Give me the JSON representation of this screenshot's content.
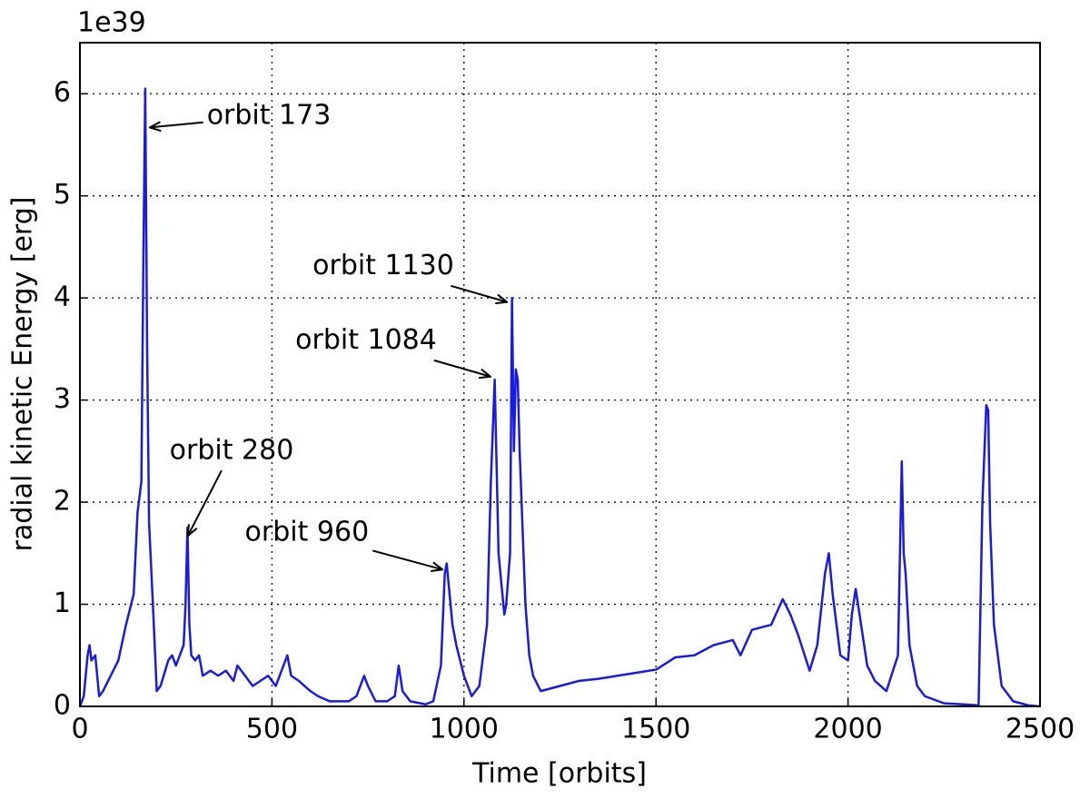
{
  "chart_data": {
    "type": "line",
    "x_label": "Time [orbits]",
    "y_label": "radial kinetic Energy [erg]",
    "y_offset_label": "1e39",
    "xlim": [
      0,
      2500
    ],
    "xticks": [
      0,
      500,
      1000,
      1500,
      2000,
      2500
    ],
    "ylim": [
      0,
      6.5
    ],
    "yticks": [
      0,
      1,
      2,
      3,
      4,
      5,
      6
    ],
    "grid": true,
    "series": [
      {
        "color": "#1a1ae6",
        "x": [
          0,
          10,
          20,
          25,
          30,
          40,
          50,
          60,
          80,
          100,
          120,
          140,
          150,
          160,
          165,
          170,
          175,
          180,
          190,
          200,
          210,
          230,
          240,
          250,
          260,
          270,
          275,
          280,
          285,
          290,
          300,
          310,
          320,
          340,
          360,
          380,
          400,
          410,
          430,
          450,
          470,
          490,
          510,
          530,
          540,
          550,
          570,
          600,
          620,
          650,
          680,
          700,
          720,
          740,
          750,
          770,
          800,
          820,
          830,
          840,
          860,
          900,
          920,
          940,
          950,
          955,
          960,
          970,
          980,
          1000,
          1020,
          1040,
          1060,
          1070,
          1080,
          1090,
          1100,
          1105,
          1110,
          1120,
          1125,
          1130,
          1135,
          1140,
          1145,
          1150,
          1160,
          1170,
          1180,
          1200,
          1250,
          1300,
          1350,
          1400,
          1450,
          1500,
          1550,
          1600,
          1650,
          1700,
          1720,
          1750,
          1800,
          1830,
          1850,
          1870,
          1900,
          1920,
          1940,
          1950,
          1960,
          1980,
          2000,
          2010,
          2020,
          2030,
          2050,
          2070,
          2100,
          2130,
          2140,
          2145,
          2150,
          2160,
          2180,
          2200,
          2250,
          2300,
          2340,
          2345,
          2350,
          2360,
          2365,
          2370,
          2380,
          2400,
          2430,
          2470,
          2500
        ],
        "values": [
          0,
          0.1,
          0.5,
          0.6,
          0.45,
          0.5,
          0.1,
          0.15,
          0.3,
          0.45,
          0.8,
          1.1,
          1.9,
          2.2,
          4.3,
          6.05,
          3.5,
          1.8,
          1.0,
          0.15,
          0.2,
          0.45,
          0.5,
          0.4,
          0.5,
          0.6,
          1.0,
          1.75,
          0.8,
          0.5,
          0.45,
          0.5,
          0.3,
          0.35,
          0.3,
          0.35,
          0.25,
          0.4,
          0.3,
          0.2,
          0.25,
          0.3,
          0.2,
          0.4,
          0.5,
          0.3,
          0.25,
          0.15,
          0.1,
          0.05,
          0.05,
          0.05,
          0.1,
          0.3,
          0.2,
          0.05,
          0.05,
          0.1,
          0.4,
          0.15,
          0.05,
          0.02,
          0.05,
          0.4,
          1.3,
          1.4,
          1.2,
          0.8,
          0.6,
          0.3,
          0.1,
          0.2,
          0.8,
          2.2,
          3.2,
          1.5,
          1.1,
          0.9,
          1.0,
          1.5,
          4.0,
          2.5,
          3.3,
          3.2,
          2.5,
          2.0,
          1.0,
          0.5,
          0.3,
          0.15,
          0.2,
          0.25,
          0.27,
          0.3,
          0.33,
          0.36,
          0.48,
          0.5,
          0.6,
          0.65,
          0.5,
          0.75,
          0.8,
          1.05,
          0.9,
          0.7,
          0.35,
          0.6,
          1.3,
          1.5,
          1.1,
          0.5,
          0.45,
          0.9,
          1.15,
          0.9,
          0.4,
          0.25,
          0.15,
          0.5,
          2.4,
          1.5,
          1.3,
          0.6,
          0.2,
          0.1,
          0.03,
          0.02,
          0.01,
          1.0,
          2.0,
          2.95,
          2.9,
          1.8,
          0.8,
          0.2,
          0.05,
          0.01,
          0.0
        ]
      }
    ],
    "annotations": [
      {
        "text": "orbit 173",
        "x": 182,
        "y": 5.67,
        "text_x": 492,
        "text_y": 5.78
      },
      {
        "text": "orbit 280",
        "x": 281,
        "y": 1.67,
        "text_x": 395,
        "text_y": 2.5
      },
      {
        "text": "orbit 960",
        "x": 944,
        "y": 1.34,
        "text_x": 591,
        "text_y": 1.7
      },
      {
        "text": "orbit 1084",
        "x": 1069,
        "y": 3.23,
        "text_x": 745,
        "text_y": 3.58
      },
      {
        "text": "orbit 1130",
        "x": 1112,
        "y": 3.96,
        "text_x": 790,
        "text_y": 4.31
      }
    ]
  }
}
